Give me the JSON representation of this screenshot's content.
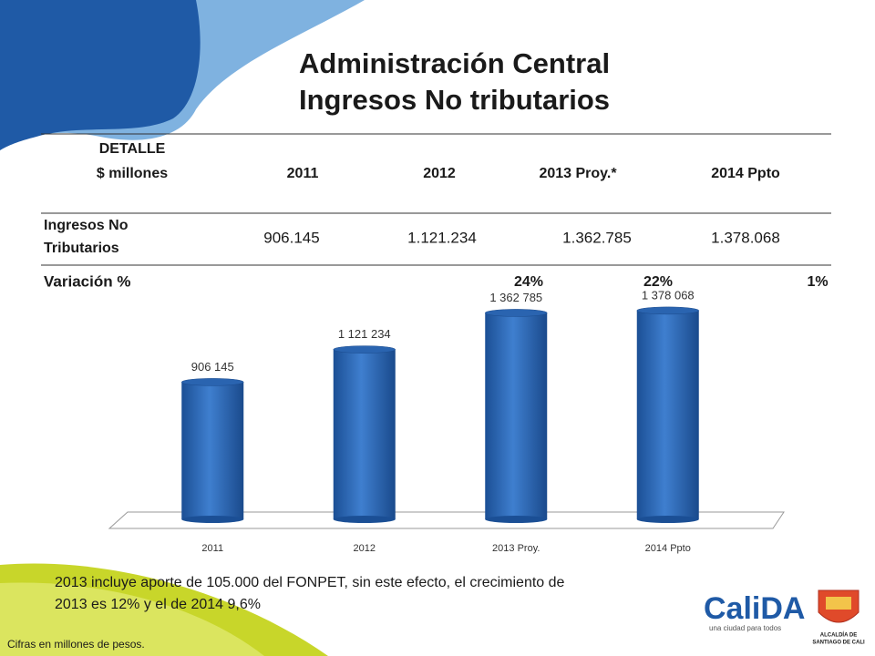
{
  "header": {
    "title": [
      "Administración Central",
      "Ingresos No tributarios"
    ]
  },
  "table": {
    "header": [
      [
        "DETALLE",
        "$ millones"
      ],
      "2011",
      "2012",
      "2013  Proy.*",
      "2014 Ppto"
    ],
    "rows": [
      [
        [
          "Ingresos No",
          "Tributarios"
        ],
        "906.145",
        "1.121.234",
        "1.362.785",
        "1.378.068"
      ]
    ],
    "variation": {
      "label": "Variación %",
      "values": [
        "24%",
        "22%",
        "1%"
      ]
    }
  },
  "chart_data": {
    "type": "bar",
    "categories": [
      "2011",
      "2012",
      "2013  Proy.",
      "2014 Ppto"
    ],
    "values": [
      906145,
      1121234,
      1362785,
      1378068
    ],
    "value_labels": [
      "906 145",
      "1 121 234",
      "1 362 785",
      "1 378 068"
    ],
    "color": "#2a64b0",
    "ylim": [
      0,
      1600000
    ]
  },
  "footnote": [
    "2013 incluye aporte de 105.000 del FONPET, sin este efecto, el crecimiento de",
    "2013 es 12% y el de 2014 9,6%"
  ],
  "source_note": "Cifras en millones de pesos.",
  "logos": {
    "calida": "CaliDA",
    "calida_tagline": "una ciudad para todos",
    "alcaldia": [
      "ALCALDÍA DE",
      "SANTIAGO DE CALI"
    ]
  }
}
